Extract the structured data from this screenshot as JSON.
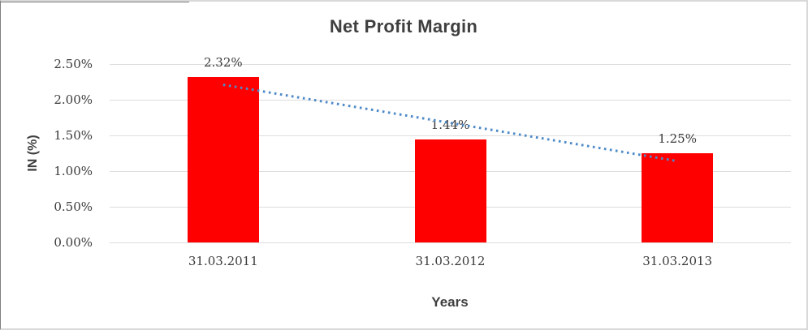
{
  "chart_data": {
    "type": "bar",
    "title": "Net Profit Margin",
    "xlabel": "Years",
    "ylabel": "IN (%)",
    "categories": [
      "31.03.2011",
      "31.03.2012",
      "31.03.2013"
    ],
    "series": [
      {
        "name": "Net Profit Margin",
        "values": [
          2.32,
          1.44,
          1.25
        ]
      }
    ],
    "data_labels": [
      "2.32%",
      "1.44%",
      "1.25%"
    ],
    "ylim": [
      0,
      2.5
    ],
    "y_ticks": [
      0,
      0.5,
      1.0,
      1.5,
      2.0,
      2.5
    ],
    "y_tick_labels": [
      "0.00%",
      "0.50%",
      "1.00%",
      "1.50%",
      "2.00%",
      "2.50%"
    ],
    "grid": true,
    "legend_position": "none",
    "bar_color": "#ff0000",
    "trendline": {
      "type": "linear",
      "style": "dotted",
      "color": "#4e8ac8",
      "start_value": 2.21,
      "end_value": 1.14
    }
  },
  "colors": {
    "title": "#3f3f3f",
    "tick_label": "#3a3a3a",
    "gridline": "#dddddd",
    "frame_border": "#d9d9d9",
    "frame_edge": "#7f7f7f"
  }
}
